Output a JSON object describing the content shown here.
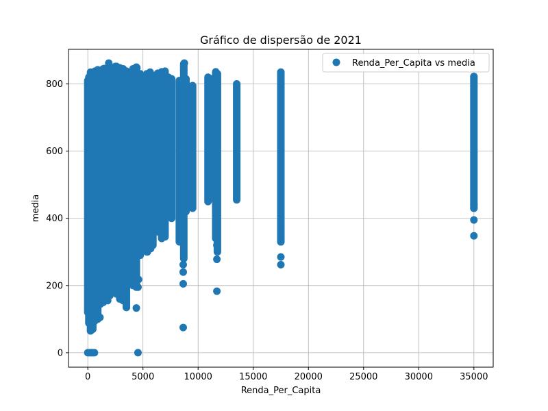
{
  "chart_data": {
    "type": "scatter",
    "title": "Gráfico de dispersão de 2021",
    "xlabel": "Renda_Per_Capita",
    "ylabel": "media",
    "xlim": [
      -1750,
      36750
    ],
    "ylim": [
      -43,
      903
    ],
    "xticks": [
      0,
      5000,
      10000,
      15000,
      20000,
      25000,
      30000,
      35000
    ],
    "yticks": [
      0,
      200,
      400,
      600,
      800
    ],
    "grid": true,
    "legend_position": "top-right",
    "marker_color": "#1f77b4",
    "series": [
      {
        "name": "Renda_Per_Capita vs media",
        "bands": [
          {
            "x": 0,
            "ymin": 120,
            "ymax": 810
          },
          {
            "x": 100,
            "ymin": 90,
            "ymax": 820
          },
          {
            "x": 250,
            "ymin": 65,
            "ymax": 835
          },
          {
            "x": 450,
            "ymin": 70,
            "ymax": 830
          },
          {
            "x": 650,
            "ymin": 95,
            "ymax": 838
          },
          {
            "x": 900,
            "ymin": 100,
            "ymax": 842
          },
          {
            "x": 1150,
            "ymin": 145,
            "ymax": 838
          },
          {
            "x": 1400,
            "ymin": 150,
            "ymax": 845
          },
          {
            "x": 1700,
            "ymin": 160,
            "ymax": 840
          },
          {
            "x": 2000,
            "ymin": 170,
            "ymax": 848
          },
          {
            "x": 2300,
            "ymin": 190,
            "ymax": 845
          },
          {
            "x": 2600,
            "ymin": 175,
            "ymax": 852
          },
          {
            "x": 2900,
            "ymin": 160,
            "ymax": 848
          },
          {
            "x": 3200,
            "ymin": 155,
            "ymax": 845
          },
          {
            "x": 3500,
            "ymin": 135,
            "ymax": 838
          },
          {
            "x": 3800,
            "ymin": 260,
            "ymax": 830
          },
          {
            "x": 4100,
            "ymin": 200,
            "ymax": 845
          },
          {
            "x": 4400,
            "ymin": 195,
            "ymax": 850
          },
          {
            "x": 4750,
            "ymin": 290,
            "ymax": 830
          },
          {
            "x": 5050,
            "ymin": 330,
            "ymax": 820
          },
          {
            "x": 5350,
            "ymin": 300,
            "ymax": 830
          },
          {
            "x": 5650,
            "ymin": 310,
            "ymax": 835
          },
          {
            "x": 5900,
            "ymin": 320,
            "ymax": 825
          },
          {
            "x": 6350,
            "ymin": 360,
            "ymax": 832
          },
          {
            "x": 6700,
            "ymin": 340,
            "ymax": 836
          },
          {
            "x": 7000,
            "ymin": 345,
            "ymax": 838
          },
          {
            "x": 7300,
            "ymin": 420,
            "ymax": 820
          },
          {
            "x": 7600,
            "ymin": 400,
            "ymax": 815
          },
          {
            "x": 8300,
            "ymin": 330,
            "ymax": 810
          },
          {
            "x": 8700,
            "ymin": 280,
            "ymax": 860
          },
          {
            "x": 8900,
            "ymin": 420,
            "ymax": 815
          },
          {
            "x": 9500,
            "ymin": 430,
            "ymax": 795
          },
          {
            "x": 10900,
            "ymin": 450,
            "ymax": 820
          },
          {
            "x": 11150,
            "ymin": 460,
            "ymax": 815
          },
          {
            "x": 11600,
            "ymin": 340,
            "ymax": 836
          },
          {
            "x": 11750,
            "ymin": 300,
            "ymax": 830
          },
          {
            "x": 13500,
            "ymin": 455,
            "ymax": 800
          },
          {
            "x": 17500,
            "ymin": 330,
            "ymax": 835
          },
          {
            "x": 35000,
            "ymin": 430,
            "ymax": 822
          }
        ],
        "points": [
          {
            "x": 0,
            "y": 0
          },
          {
            "x": 150,
            "y": 0
          },
          {
            "x": 300,
            "y": 0
          },
          {
            "x": 450,
            "y": 0
          },
          {
            "x": 600,
            "y": 0
          },
          {
            "x": 4550,
            "y": 0
          },
          {
            "x": 100,
            "y": 88
          },
          {
            "x": 250,
            "y": 65
          },
          {
            "x": 350,
            "y": 75
          },
          {
            "x": 600,
            "y": 95
          },
          {
            "x": 1100,
            "y": 105
          },
          {
            "x": 1800,
            "y": 155
          },
          {
            "x": 3200,
            "y": 160
          },
          {
            "x": 3500,
            "y": 135
          },
          {
            "x": 4400,
            "y": 133
          },
          {
            "x": 4550,
            "y": 195
          },
          {
            "x": 4400,
            "y": 218
          },
          {
            "x": 4600,
            "y": 218
          },
          {
            "x": 3300,
            "y": 195
          },
          {
            "x": 2900,
            "y": 235
          },
          {
            "x": 3700,
            "y": 240
          },
          {
            "x": 2400,
            "y": 210
          },
          {
            "x": 1900,
            "y": 862
          },
          {
            "x": 2500,
            "y": 852
          },
          {
            "x": 4450,
            "y": 848
          },
          {
            "x": 1500,
            "y": 846
          },
          {
            "x": 8650,
            "y": 75
          },
          {
            "x": 8650,
            "y": 205
          },
          {
            "x": 8650,
            "y": 240
          },
          {
            "x": 8650,
            "y": 262
          },
          {
            "x": 8750,
            "y": 862
          },
          {
            "x": 8700,
            "y": 840
          },
          {
            "x": 11700,
            "y": 183
          },
          {
            "x": 11700,
            "y": 278
          },
          {
            "x": 11700,
            "y": 320
          },
          {
            "x": 17500,
            "y": 262
          },
          {
            "x": 17500,
            "y": 285
          },
          {
            "x": 17500,
            "y": 330
          },
          {
            "x": 17500,
            "y": 355
          },
          {
            "x": 17500,
            "y": 378
          },
          {
            "x": 17500,
            "y": 835
          },
          {
            "x": 35000,
            "y": 348
          },
          {
            "x": 35000,
            "y": 395
          },
          {
            "x": 35000,
            "y": 430
          },
          {
            "x": 35000,
            "y": 440
          },
          {
            "x": 35000,
            "y": 822
          },
          {
            "x": 5400,
            "y": 300
          },
          {
            "x": 5700,
            "y": 310
          }
        ]
      }
    ]
  }
}
